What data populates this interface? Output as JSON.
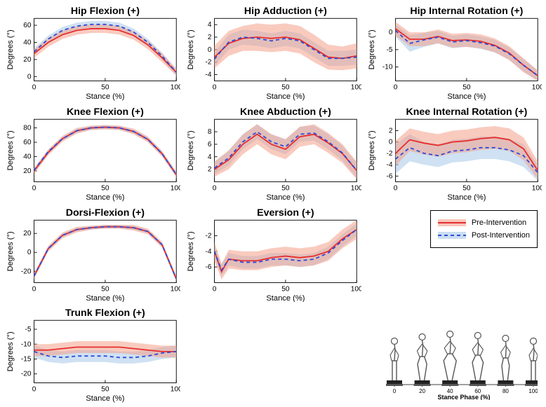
{
  "globals": {
    "background_color": "#ffffff",
    "axis_color": "#000000",
    "tick_fontsize": 10,
    "title_fontsize": 14,
    "title_weight": "bold",
    "label_fontsize": 11,
    "pre_line_color": "#e62e2e",
    "pre_band_color": "#f4a08a",
    "pre_band_opacity": 0.55,
    "post_line_color": "#2e4bd8",
    "post_band_color": "#a7c8e8",
    "post_band_opacity": 0.55,
    "pre_dash": "",
    "post_dash": "5 4",
    "line_width": 1.8
  },
  "legend": {
    "border_color": "#000000",
    "items": [
      {
        "label": "Pre-Intervention",
        "series_key": "pre",
        "line_color": "#e62e2e",
        "band_color": "#f4a08a",
        "dash": ""
      },
      {
        "label": "Post-Intervention",
        "series_key": "post",
        "line_color": "#2e4bd8",
        "band_color": "#a7c8e8",
        "dash": "5 4"
      }
    ]
  },
  "skeleton_panel": {
    "xlabel": "Stance Phase (%)",
    "xticks": [
      0,
      20,
      40,
      60,
      80,
      100
    ],
    "frame_color": "#555555",
    "platform_color": "#222222"
  },
  "charts": {
    "hip_flexion": {
      "title": "Hip Flexion (+)",
      "xlabel": "Stance (%)",
      "ylabel": "Degrees (°)",
      "xticks": [
        0,
        50,
        100
      ],
      "yticks": [
        0,
        20,
        40,
        60
      ],
      "xlim": [
        0,
        100
      ],
      "ylim": [
        -5,
        68
      ],
      "x": [
        0,
        10,
        20,
        30,
        40,
        50,
        60,
        70,
        80,
        90,
        100
      ],
      "pre": {
        "mean": [
          27,
          40,
          49,
          54,
          56,
          56,
          54,
          48,
          37,
          22,
          5
        ],
        "lo": [
          22,
          35,
          44,
          49,
          51,
          51,
          49,
          43,
          32,
          17,
          1
        ],
        "hi": [
          32,
          45,
          54,
          59,
          61,
          61,
          59,
          53,
          42,
          27,
          9
        ]
      },
      "post": {
        "mean": [
          29,
          44,
          54,
          59,
          61,
          61,
          59,
          52,
          40,
          24,
          5
        ],
        "lo": [
          25,
          40,
          50,
          55,
          57,
          57,
          55,
          48,
          36,
          20,
          1
        ],
        "hi": [
          33,
          48,
          58,
          63,
          65,
          65,
          63,
          56,
          44,
          28,
          9
        ]
      }
    },
    "hip_adduction": {
      "title": "Hip Adduction (+)",
      "xlabel": "Stance (%)",
      "ylabel": "Degrees (°)",
      "xticks": [
        0,
        50,
        100
      ],
      "yticks": [
        -4,
        -2,
        0,
        2,
        4
      ],
      "xlim": [
        0,
        100
      ],
      "ylim": [
        -5,
        5
      ],
      "x": [
        0,
        10,
        20,
        30,
        40,
        50,
        60,
        70,
        80,
        90,
        100
      ],
      "pre": {
        "mean": [
          -1.2,
          1.0,
          1.8,
          2.0,
          1.8,
          2.0,
          1.6,
          0.2,
          -1.2,
          -1.4,
          -1.0
        ],
        "lo": [
          -3.0,
          -1.0,
          -0.2,
          -0.2,
          -0.4,
          -0.2,
          -0.6,
          -2.0,
          -3.2,
          -3.3,
          -3.0
        ],
        "hi": [
          0.6,
          3.0,
          3.8,
          4.2,
          4.0,
          4.2,
          3.8,
          2.4,
          0.8,
          0.5,
          1.0
        ]
      },
      "post": {
        "mean": [
          -1.5,
          1.2,
          2.0,
          1.8,
          1.4,
          1.8,
          1.4,
          0.0,
          -1.4,
          -1.4,
          -1.2
        ],
        "lo": [
          -2.6,
          0.0,
          0.8,
          0.6,
          0.2,
          0.6,
          0.2,
          -1.2,
          -2.6,
          -2.6,
          -2.4
        ],
        "hi": [
          -0.4,
          2.4,
          3.2,
          3.0,
          2.6,
          3.0,
          2.6,
          1.2,
          -0.2,
          -0.2,
          0.0
        ]
      }
    },
    "hip_internal": {
      "title": "Hip Internal Rotation (+)",
      "xlabel": "Stance (%)",
      "ylabel": "Degrees (°)",
      "xticks": [
        0,
        50,
        100
      ],
      "yticks": [
        -10,
        -5,
        0
      ],
      "xlim": [
        0,
        100
      ],
      "ylim": [
        -14,
        4
      ],
      "x": [
        0,
        10,
        20,
        30,
        40,
        50,
        60,
        70,
        80,
        90,
        100
      ],
      "pre": {
        "mean": [
          1,
          -2,
          -2,
          -1.2,
          -2.4,
          -2.2,
          -2.6,
          -3.8,
          -6.0,
          -9.5,
          -12.5
        ],
        "lo": [
          -1,
          -4,
          -4,
          -3.2,
          -4.4,
          -4.2,
          -4.6,
          -5.8,
          -8.0,
          -11.5,
          -14
        ],
        "hi": [
          3,
          0,
          0,
          0.8,
          -0.4,
          -0.2,
          -0.6,
          -1.8,
          -4.0,
          -7.5,
          -11
        ]
      },
      "post": {
        "mean": [
          0.5,
          -3.2,
          -2.2,
          -1.4,
          -2.8,
          -2.4,
          -3.0,
          -4.0,
          -6.2,
          -9.5,
          -12.5
        ],
        "lo": [
          -1.2,
          -5.6,
          -4.2,
          -3.2,
          -4.6,
          -4.2,
          -4.8,
          -5.8,
          -8.0,
          -11.3,
          -14
        ],
        "hi": [
          2.2,
          -0.8,
          -0.2,
          0.4,
          -1.0,
          -0.6,
          -1.2,
          -2.2,
          -4.4,
          -7.7,
          -11
        ]
      }
    },
    "knee_flexion": {
      "title": "Knee Flexion (+)",
      "xlabel": "Stance (%)",
      "ylabel": "Degrees (°)",
      "xticks": [
        0,
        50,
        100
      ],
      "yticks": [
        20,
        40,
        60,
        80
      ],
      "xlim": [
        0,
        100
      ],
      "ylim": [
        5,
        92
      ],
      "x": [
        0,
        10,
        20,
        30,
        40,
        50,
        60,
        70,
        80,
        90,
        100
      ],
      "pre": {
        "mean": [
          20,
          46,
          65,
          76,
          80,
          81,
          80,
          75,
          64,
          44,
          15
        ],
        "lo": [
          16,
          42,
          61,
          72,
          77,
          78,
          77,
          71,
          60,
          40,
          11
        ],
        "hi": [
          24,
          50,
          69,
          80,
          83,
          84,
          83,
          79,
          68,
          48,
          19
        ]
      },
      "post": {
        "mean": [
          21,
          47,
          65,
          76,
          80,
          81,
          80,
          75,
          64,
          44,
          15
        ],
        "lo": [
          18,
          44,
          62,
          73,
          77,
          78,
          77,
          72,
          61,
          41,
          12
        ],
        "hi": [
          24,
          50,
          68,
          79,
          83,
          84,
          83,
          78,
          67,
          47,
          18
        ]
      }
    },
    "knee_abduction": {
      "title": "Knee Abduction (+)",
      "xlabel": "Stance (%)",
      "ylabel": "Degrees (°)",
      "xticks": [
        0,
        50,
        100
      ],
      "yticks": [
        2,
        4,
        6,
        8
      ],
      "xlim": [
        0,
        100
      ],
      "ylim": [
        0,
        10
      ],
      "x": [
        0,
        10,
        20,
        30,
        40,
        50,
        60,
        70,
        80,
        90,
        100
      ],
      "pre": {
        "mean": [
          2.0,
          3.5,
          6.0,
          7.6,
          6.0,
          5.2,
          7.2,
          7.6,
          6.2,
          4.5,
          1.8
        ],
        "lo": [
          0.8,
          2.0,
          4.4,
          6.0,
          4.4,
          3.6,
          5.6,
          6.0,
          4.6,
          3.0,
          0.4
        ],
        "hi": [
          3.2,
          5.0,
          7.6,
          9.2,
          7.6,
          6.8,
          8.8,
          9.2,
          7.8,
          6.0,
          3.2
        ]
      },
      "post": {
        "mean": [
          2.2,
          3.8,
          6.4,
          8.0,
          6.4,
          5.6,
          7.6,
          7.8,
          6.4,
          4.6,
          1.8
        ],
        "lo": [
          1.2,
          2.6,
          5.2,
          6.8,
          5.2,
          4.4,
          6.4,
          6.6,
          5.2,
          3.4,
          0.6
        ],
        "hi": [
          3.2,
          5.0,
          7.6,
          9.2,
          7.6,
          6.8,
          8.8,
          9.0,
          7.6,
          5.8,
          3.0
        ]
      }
    },
    "knee_internal": {
      "title": "Knee Internal Rotation (+)",
      "xlabel": "Stance (%)",
      "ylabel": "Degrees (°)",
      "xticks": [
        0,
        50,
        100
      ],
      "yticks": [
        -6,
        -4,
        -2,
        0,
        2
      ],
      "xlim": [
        0,
        100
      ],
      "ylim": [
        -7,
        4
      ],
      "x": [
        0,
        10,
        20,
        30,
        40,
        50,
        60,
        70,
        80,
        90,
        100
      ],
      "pre": {
        "mean": [
          -2.0,
          0.4,
          -0.2,
          -0.6,
          0.0,
          0.2,
          0.6,
          0.8,
          0.4,
          -1.2,
          -5.0
        ],
        "lo": [
          -4.2,
          -1.6,
          -2.2,
          -2.6,
          -2.0,
          -1.8,
          -1.4,
          -1.2,
          -1.6,
          -3.2,
          -6.6
        ],
        "hi": [
          0.2,
          2.4,
          1.8,
          1.4,
          2.0,
          2.2,
          2.6,
          2.8,
          2.4,
          0.8,
          -3.4
        ]
      },
      "post": {
        "mean": [
          -3.0,
          -1.0,
          -2.0,
          -2.4,
          -1.6,
          -1.4,
          -1.0,
          -1.0,
          -1.4,
          -2.4,
          -5.4
        ],
        "lo": [
          -5.6,
          -3.4,
          -4.0,
          -4.4,
          -3.6,
          -3.4,
          -3.0,
          -3.0,
          -3.4,
          -4.4,
          -6.8
        ],
        "hi": [
          -0.4,
          1.4,
          0.0,
          -0.4,
          0.4,
          0.6,
          1.0,
          1.0,
          0.6,
          -0.4,
          -4.0
        ]
      }
    },
    "dorsi_flexion": {
      "title": "Dorsi-Flexion (+)",
      "xlabel": "Stance (%)",
      "ylabel": "Degrees (°)",
      "xticks": [
        0,
        50,
        100
      ],
      "yticks": [
        -20,
        0,
        20
      ],
      "xlim": [
        0,
        100
      ],
      "ylim": [
        -32,
        34
      ],
      "x": [
        0,
        10,
        20,
        30,
        40,
        50,
        60,
        70,
        80,
        90,
        100
      ],
      "pre": {
        "mean": [
          -25,
          4,
          18,
          24,
          26,
          27,
          27,
          26,
          22,
          8,
          -28
        ],
        "lo": [
          -28,
          1,
          15,
          21,
          24,
          25,
          25,
          23,
          19,
          5,
          -31
        ],
        "hi": [
          -22,
          7,
          21,
          27,
          28,
          29,
          29,
          29,
          25,
          11,
          -25
        ]
      },
      "post": {
        "mean": [
          -25,
          4,
          18,
          24,
          26,
          27,
          27,
          26,
          22,
          8,
          -28
        ],
        "lo": [
          -27,
          2,
          16,
          22,
          24,
          25,
          25,
          24,
          20,
          6,
          -30
        ],
        "hi": [
          -23,
          6,
          20,
          26,
          28,
          29,
          29,
          28,
          24,
          10,
          -26
        ]
      }
    },
    "eversion": {
      "title": "Eversion (+)",
      "xlabel": "Stance (%)",
      "ylabel": "Degrees (°)",
      "xticks": [
        0,
        50,
        100
      ],
      "yticks": [
        -6,
        -4,
        -2
      ],
      "xlim": [
        0,
        100
      ],
      "ylim": [
        -8,
        0
      ],
      "x": [
        0,
        5,
        10,
        20,
        30,
        40,
        50,
        60,
        70,
        80,
        90,
        100
      ],
      "pre": {
        "mean": [
          -4.0,
          -6.6,
          -5.0,
          -5.2,
          -5.2,
          -4.8,
          -4.6,
          -4.8,
          -4.6,
          -4.0,
          -2.4,
          -1.2
        ],
        "lo": [
          -5.2,
          -7.6,
          -6.2,
          -6.4,
          -6.4,
          -6.0,
          -5.8,
          -6.0,
          -5.8,
          -5.2,
          -3.6,
          -2.4
        ],
        "hi": [
          -2.8,
          -5.6,
          -3.8,
          -4.0,
          -4.0,
          -3.6,
          -3.4,
          -3.6,
          -3.4,
          -2.8,
          -1.2,
          0.0
        ]
      },
      "post": {
        "mean": [
          -4.0,
          -6.4,
          -5.0,
          -5.4,
          -5.4,
          -5.0,
          -5.0,
          -5.2,
          -5.0,
          -4.2,
          -2.6,
          -1.2
        ],
        "lo": [
          -4.8,
          -7.2,
          -5.8,
          -6.2,
          -6.2,
          -5.8,
          -5.8,
          -6.0,
          -5.8,
          -5.0,
          -3.4,
          -2.0
        ],
        "hi": [
          -3.2,
          -5.6,
          -4.2,
          -4.6,
          -4.6,
          -4.2,
          -4.2,
          -4.4,
          -4.2,
          -3.4,
          -1.8,
          -0.4
        ]
      }
    },
    "trunk_flexion": {
      "title": "Trunk Flexion (+)",
      "xlabel": "Stance (%)",
      "ylabel": "Degrees (°)",
      "xticks": [
        0,
        50,
        100
      ],
      "yticks": [
        -20,
        -15,
        -10,
        -5
      ],
      "xlim": [
        0,
        100
      ],
      "ylim": [
        -23,
        -2
      ],
      "x": [
        0,
        10,
        20,
        30,
        40,
        50,
        60,
        70,
        80,
        90,
        100
      ],
      "pre": {
        "mean": [
          -12,
          -12,
          -11.5,
          -11,
          -11,
          -11,
          -11,
          -11.5,
          -12,
          -12.5,
          -12.5
        ],
        "lo": [
          -14,
          -14,
          -13.5,
          -13,
          -13,
          -13,
          -13,
          -13.5,
          -14,
          -14.5,
          -14.5
        ],
        "hi": [
          -10,
          -10,
          -9.5,
          -9,
          -9,
          -9,
          -9,
          -9.5,
          -10,
          -10.5,
          -10.5
        ]
      },
      "post": {
        "mean": [
          -12.5,
          -14,
          -14.5,
          -14,
          -14,
          -14,
          -14.5,
          -14.5,
          -14,
          -13,
          -12.5
        ],
        "lo": [
          -14.5,
          -16,
          -16.5,
          -16,
          -16,
          -16,
          -16.5,
          -16.5,
          -16,
          -15,
          -14.5
        ],
        "hi": [
          -10.5,
          -12,
          -12.5,
          -12,
          -12,
          -12,
          -12.5,
          -12.5,
          -12,
          -11,
          -10.5
        ]
      }
    }
  },
  "layout": [
    [
      "hip_flexion",
      "hip_adduction",
      "hip_internal"
    ],
    [
      "knee_flexion",
      "knee_abduction",
      "knee_internal"
    ],
    [
      "dorsi_flexion",
      "eversion",
      null
    ],
    [
      "trunk_flexion",
      null,
      null
    ]
  ]
}
